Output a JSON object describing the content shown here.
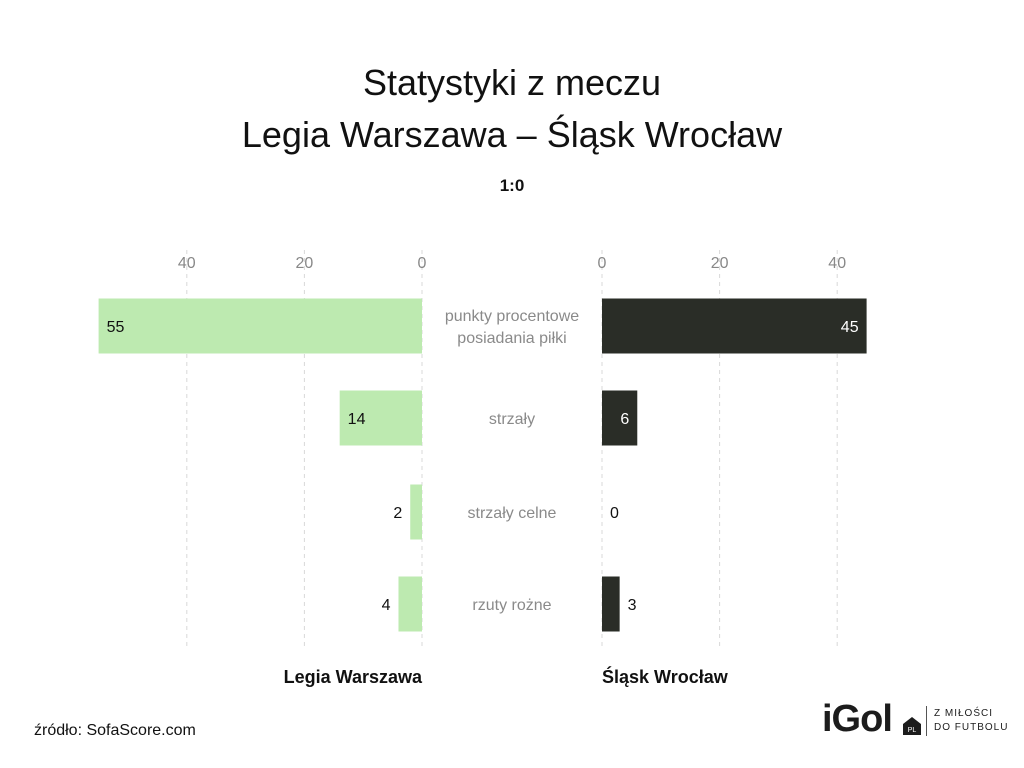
{
  "title_line1": "Statystyki z meczu",
  "title_line2": "Legia Warszawa – Śląsk Wrocław",
  "score": "1:0",
  "source": "źródło: SofaScore.com",
  "logo": {
    "text": "iGol",
    "badge": "PL",
    "tag_line1": "Z MIŁOŚCI",
    "tag_line2": "DO FUTBOLU"
  },
  "chart_data": {
    "type": "bar",
    "orientation": "horizontal-diverging",
    "categories": [
      "punkty procentowe posiadania piłki",
      "strzały",
      "strzały celne",
      "rzuty rożne"
    ],
    "category_lines": [
      [
        "punkty procentowe",
        "posiadania piłki"
      ],
      [
        "strzały"
      ],
      [
        "strzały celne"
      ],
      [
        "rzuty rożne"
      ]
    ],
    "series": [
      {
        "name": "Legia Warszawa",
        "side": "left",
        "color": "#bdeab0",
        "label_color": "#111111",
        "values": [
          55,
          14,
          2,
          4
        ]
      },
      {
        "name": "Śląsk Wrocław",
        "side": "right",
        "color": "#2a2d27",
        "label_color": "#ffffff",
        "values": [
          45,
          6,
          0,
          3
        ]
      }
    ],
    "ticks": [
      0,
      20,
      40
    ],
    "tick_labels": [
      "0",
      "20",
      "40"
    ],
    "grid": true
  }
}
